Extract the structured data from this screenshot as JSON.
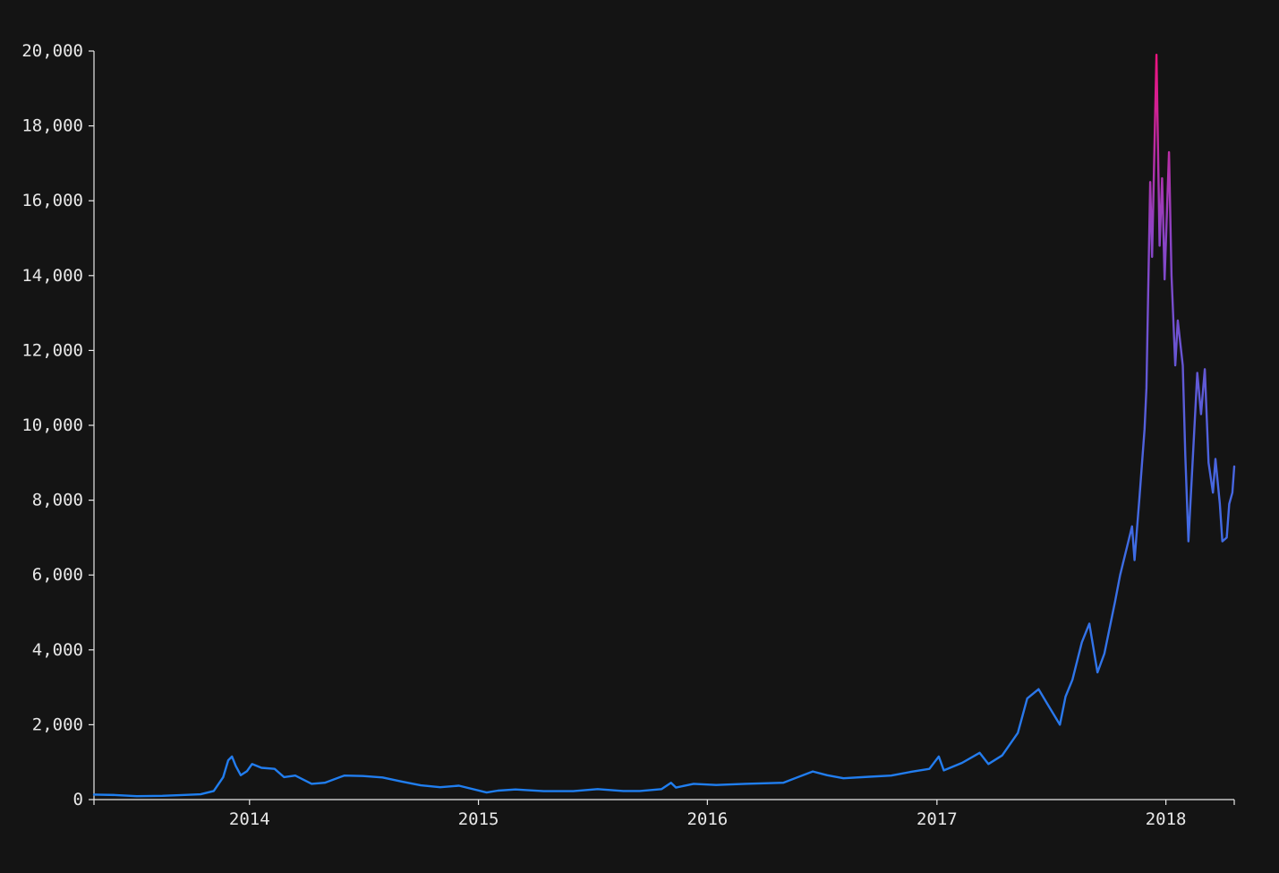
{
  "chart_data": {
    "type": "line",
    "title": "",
    "xlabel": "",
    "ylabel": "",
    "x_range": [
      "2013-04-28",
      "2018-04-20"
    ],
    "ylim": [
      0,
      20000
    ],
    "grid": false,
    "y_ticks": [
      0,
      2000,
      4000,
      6000,
      8000,
      10000,
      12000,
      14000,
      16000,
      18000,
      20000
    ],
    "y_tick_labels": [
      "0",
      "2,000",
      "4,000",
      "6,000",
      "8,000",
      "10,000",
      "12,000",
      "14,000",
      "16,000",
      "18,000",
      "20,000"
    ],
    "x_ticks": [
      "2014-01-01",
      "2015-01-01",
      "2016-01-01",
      "2017-01-01",
      "2018-01-01"
    ],
    "x_tick_labels": [
      "2014",
      "2015",
      "2016",
      "2017",
      "2018"
    ],
    "colors": {
      "background": "#141414",
      "axis": "#e8e8e8",
      "low": "#1e7ff0",
      "mid": "#8b44c6",
      "high": "#f0127d"
    },
    "color_scale_domain": [
      0,
      20000
    ],
    "series": [
      {
        "points": [
          [
            "2013-04-28",
            134
          ],
          [
            "2013-06-01",
            122
          ],
          [
            "2013-07-05",
            90
          ],
          [
            "2013-08-15",
            100
          ],
          [
            "2013-09-20",
            125
          ],
          [
            "2013-10-15",
            140
          ],
          [
            "2013-11-05",
            230
          ],
          [
            "2013-11-20",
            600
          ],
          [
            "2013-11-28",
            1050
          ],
          [
            "2013-12-04",
            1150
          ],
          [
            "2013-12-10",
            900
          ],
          [
            "2013-12-18",
            650
          ],
          [
            "2013-12-28",
            760
          ],
          [
            "2014-01-05",
            950
          ],
          [
            "2014-01-20",
            850
          ],
          [
            "2014-02-10",
            820
          ],
          [
            "2014-02-25",
            600
          ],
          [
            "2014-03-15",
            640
          ],
          [
            "2014-04-10",
            420
          ],
          [
            "2014-05-01",
            450
          ],
          [
            "2014-06-01",
            640
          ],
          [
            "2014-07-01",
            630
          ],
          [
            "2014-08-01",
            590
          ],
          [
            "2014-09-01",
            480
          ],
          [
            "2014-10-01",
            380
          ],
          [
            "2014-11-01",
            330
          ],
          [
            "2014-12-01",
            370
          ],
          [
            "2015-01-14",
            190
          ],
          [
            "2015-02-01",
            240
          ],
          [
            "2015-03-01",
            270
          ],
          [
            "2015-04-15",
            225
          ],
          [
            "2015-06-01",
            225
          ],
          [
            "2015-07-10",
            280
          ],
          [
            "2015-08-20",
            230
          ],
          [
            "2015-09-15",
            230
          ],
          [
            "2015-10-20",
            280
          ],
          [
            "2015-11-04",
            450
          ],
          [
            "2015-11-12",
            320
          ],
          [
            "2015-12-10",
            420
          ],
          [
            "2016-01-15",
            390
          ],
          [
            "2016-03-01",
            420
          ],
          [
            "2016-05-01",
            450
          ],
          [
            "2016-06-17",
            750
          ],
          [
            "2016-07-10",
            650
          ],
          [
            "2016-08-05",
            570
          ],
          [
            "2016-09-15",
            610
          ],
          [
            "2016-10-20",
            640
          ],
          [
            "2016-11-20",
            740
          ],
          [
            "2016-12-20",
            820
          ],
          [
            "2017-01-04",
            1150
          ],
          [
            "2017-01-12",
            780
          ],
          [
            "2017-02-10",
            980
          ],
          [
            "2017-03-10",
            1250
          ],
          [
            "2017-03-24",
            950
          ],
          [
            "2017-04-15",
            1180
          ],
          [
            "2017-05-10",
            1780
          ],
          [
            "2017-05-25",
            2700
          ],
          [
            "2017-06-12",
            2950
          ],
          [
            "2017-06-28",
            2500
          ],
          [
            "2017-07-16",
            2000
          ],
          [
            "2017-07-25",
            2750
          ],
          [
            "2017-08-05",
            3200
          ],
          [
            "2017-08-20",
            4200
          ],
          [
            "2017-09-01",
            4700
          ],
          [
            "2017-09-14",
            3400
          ],
          [
            "2017-09-25",
            3900
          ],
          [
            "2017-10-12",
            5300
          ],
          [
            "2017-10-20",
            6000
          ],
          [
            "2017-11-08",
            7300
          ],
          [
            "2017-11-12",
            6400
          ],
          [
            "2017-11-20",
            8100
          ],
          [
            "2017-11-28",
            9900
          ],
          [
            "2017-12-01",
            11000
          ],
          [
            "2017-12-07",
            16500
          ],
          [
            "2017-12-10",
            14500
          ],
          [
            "2017-12-17",
            19900
          ],
          [
            "2017-12-22",
            14800
          ],
          [
            "2017-12-26",
            16600
          ],
          [
            "2017-12-30",
            13900
          ],
          [
            "2018-01-06",
            17300
          ],
          [
            "2018-01-10",
            14000
          ],
          [
            "2018-01-16",
            11600
          ],
          [
            "2018-01-20",
            12800
          ],
          [
            "2018-01-28",
            11600
          ],
          [
            "2018-02-01",
            9200
          ],
          [
            "2018-02-06",
            6900
          ],
          [
            "2018-02-12",
            8800
          ],
          [
            "2018-02-20",
            11400
          ],
          [
            "2018-02-26",
            10300
          ],
          [
            "2018-03-04",
            11500
          ],
          [
            "2018-03-10",
            9000
          ],
          [
            "2018-03-17",
            8200
          ],
          [
            "2018-03-21",
            9100
          ],
          [
            "2018-03-28",
            7900
          ],
          [
            "2018-04-01",
            6900
          ],
          [
            "2018-04-08",
            7000
          ],
          [
            "2018-04-12",
            7900
          ],
          [
            "2018-04-17",
            8200
          ],
          [
            "2018-04-20",
            8900
          ]
        ]
      }
    ]
  }
}
